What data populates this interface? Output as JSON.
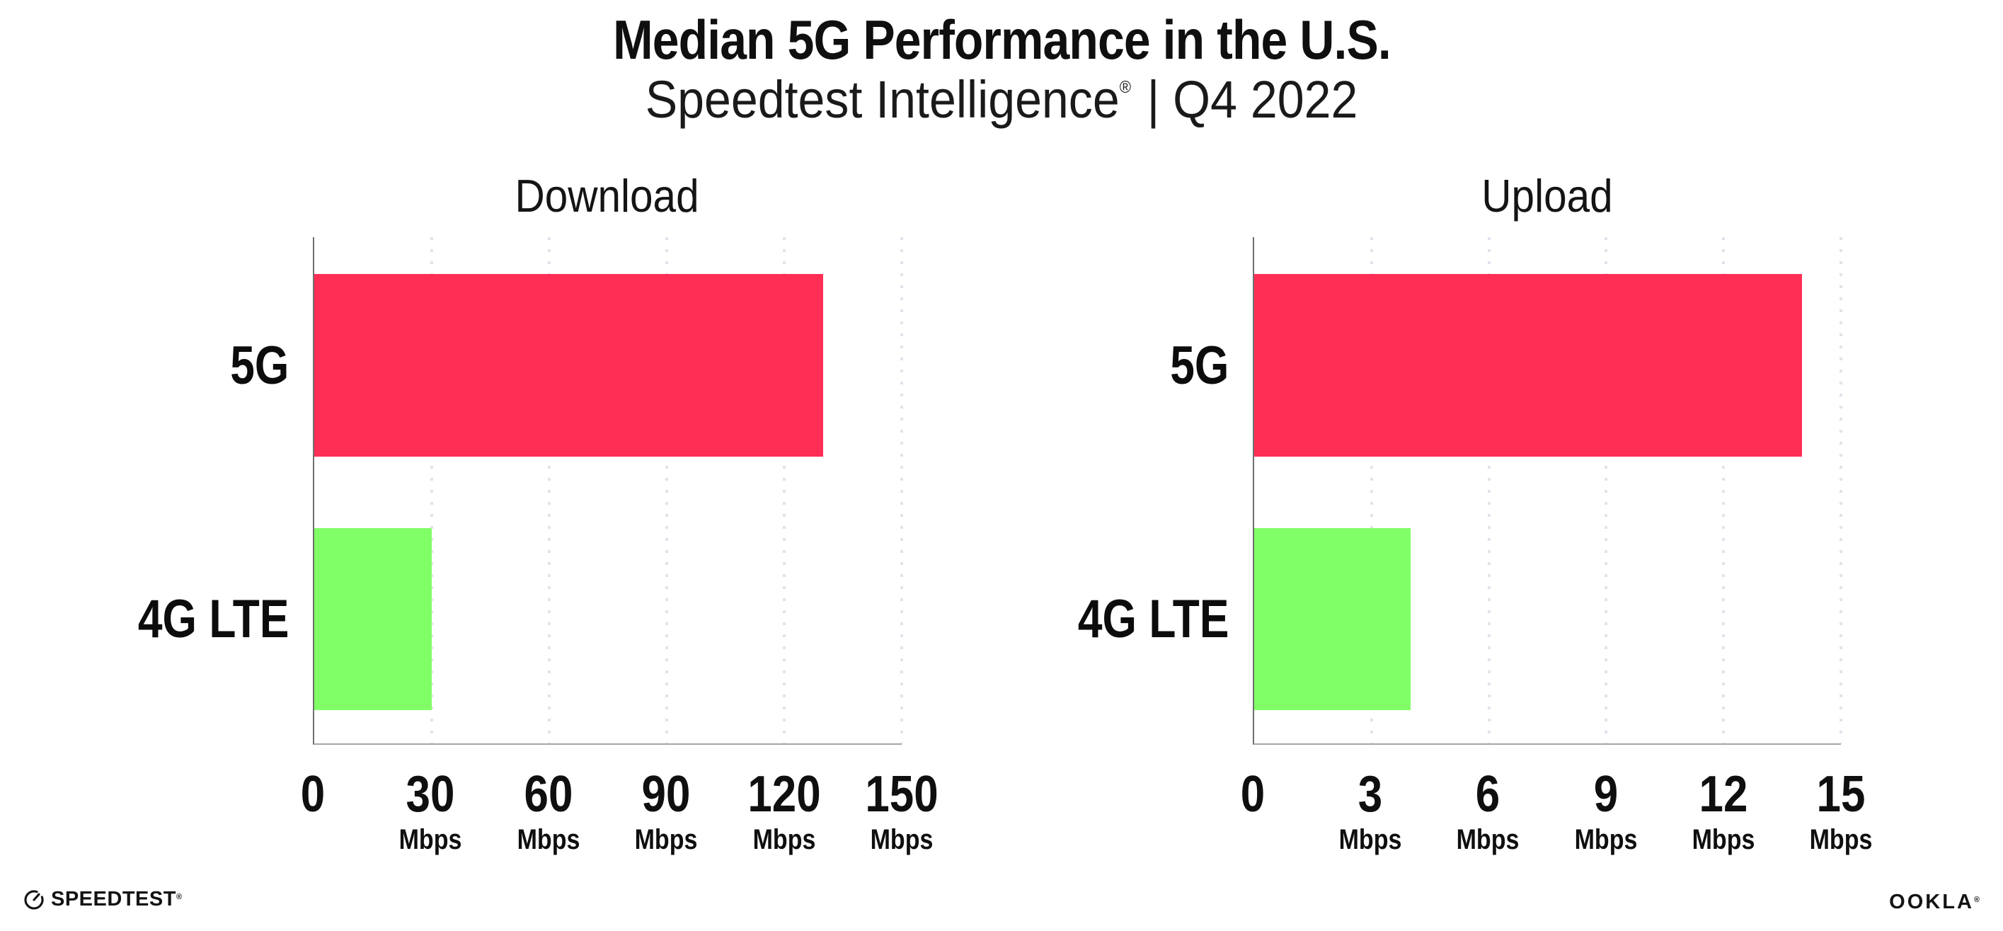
{
  "header": {
    "title": "Median 5G Performance in the U.S.",
    "subtitle_brand": "Speedtest Intelligence",
    "subtitle_mark": "®",
    "subtitle_rest": "| Q4 2022"
  },
  "chart_data": [
    {
      "type": "bar",
      "orientation": "horizontal",
      "title": "Download",
      "categories": [
        "5G",
        "4G LTE"
      ],
      "values": [
        130,
        30
      ],
      "unit": "Mbps",
      "xlim": [
        0,
        150
      ],
      "xticks": [
        0,
        30,
        60,
        90,
        120,
        150
      ],
      "bar_colors": [
        "#FF2E55",
        "#80FF66"
      ],
      "grid": "dotted-vertical",
      "legend": "none"
    },
    {
      "type": "bar",
      "orientation": "horizontal",
      "title": "Upload",
      "categories": [
        "5G",
        "4G LTE"
      ],
      "values": [
        14,
        4
      ],
      "unit": "Mbps",
      "xlim": [
        0,
        15
      ],
      "xticks": [
        0,
        3,
        6,
        9,
        12,
        15
      ],
      "bar_colors": [
        "#FF2E55",
        "#80FF66"
      ],
      "grid": "dotted-vertical",
      "legend": "none"
    }
  ],
  "colors": {
    "bar_5g": "#FF2E55",
    "bar_4g_lte": "#80FF66",
    "gridline": "#e2e2ec",
    "axis_y": "#6f6f6f",
    "axis_x": "#a6a6a6"
  },
  "footer": {
    "speedtest_label": "SPEEDTEST",
    "speedtest_mark": "®",
    "ookla_label": "OOKLA",
    "ookla_mark": "®"
  }
}
